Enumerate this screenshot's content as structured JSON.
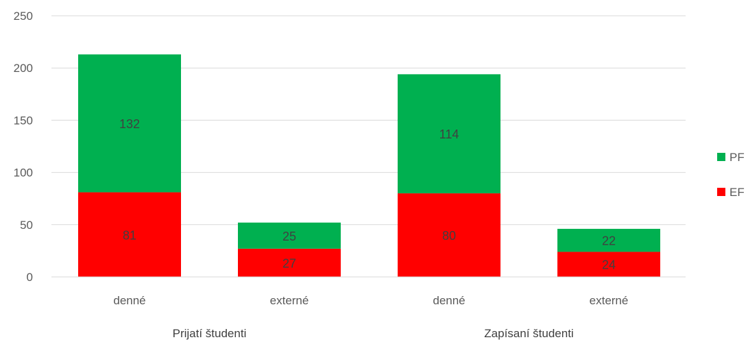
{
  "chart_data": {
    "type": "bar",
    "stacked": true,
    "groups": [
      {
        "label": "Prijatí študenti",
        "categories": [
          "denné",
          "externé"
        ]
      },
      {
        "label": "Zapísaní študenti",
        "categories": [
          "denné",
          "externé"
        ]
      }
    ],
    "categories": [
      "denné",
      "externé",
      "denné",
      "externé"
    ],
    "series": [
      {
        "name": "EF",
        "color": "#ff0000",
        "values": [
          81,
          27,
          80,
          24
        ]
      },
      {
        "name": "PF",
        "color": "#00b050",
        "values": [
          132,
          25,
          114,
          22
        ]
      }
    ],
    "ylim": [
      0,
      250
    ],
    "yticks": [
      0,
      50,
      100,
      150,
      200,
      250
    ],
    "grid": true,
    "legend_position": "right",
    "legend_order": [
      "PF",
      "EF"
    ],
    "title": "",
    "xlabel": "",
    "ylabel": ""
  }
}
